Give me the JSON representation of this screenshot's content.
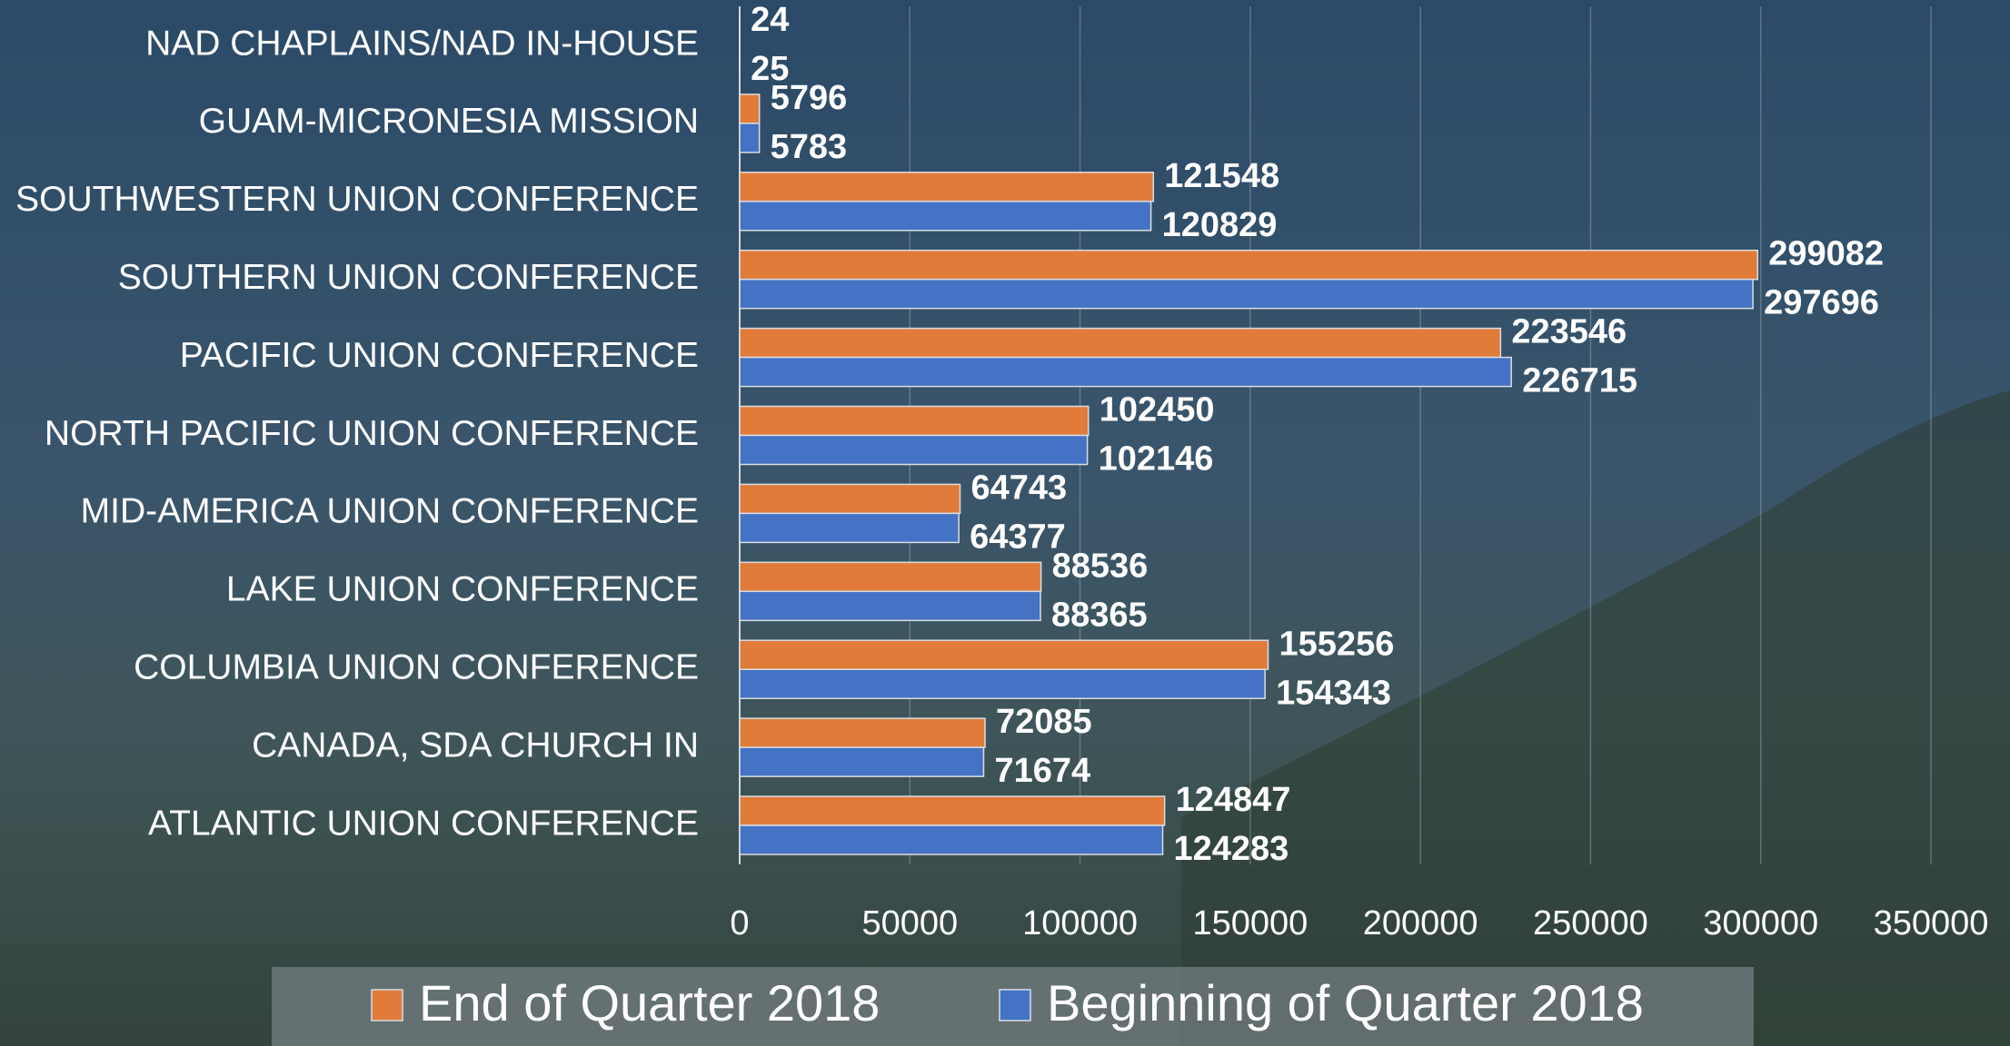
{
  "chart_data": {
    "type": "bar",
    "orientation": "horizontal",
    "categories": [
      "NAD CHAPLAINS/NAD IN-HOUSE",
      "GUAM-MICRONESIA MISSION",
      "SOUTHWESTERN UNION CONFERENCE",
      "SOUTHERN UNION CONFERENCE",
      "PACIFIC UNION CONFERENCE",
      "NORTH PACIFIC UNION CONFERENCE",
      "MID-AMERICA UNION CONFERENCE",
      "LAKE UNION CONFERENCE",
      "COLUMBIA UNION CONFERENCE",
      "CANADA, SDA CHURCH IN",
      "ATLANTIC UNION CONFERENCE"
    ],
    "series": [
      {
        "name": "End of Quarter 2018",
        "color": "#e07b39",
        "values": [
          24,
          5796,
          121548,
          299082,
          223546,
          102450,
          64743,
          88536,
          155256,
          72085,
          124847
        ]
      },
      {
        "name": "Beginning of Quarter 2018",
        "color": "#4472c4",
        "values": [
          25,
          5783,
          120829,
          297696,
          226715,
          102146,
          64377,
          88365,
          154343,
          71674,
          124283
        ]
      }
    ],
    "xlim": [
      0,
      350000
    ],
    "xticks": [
      0,
      50000,
      100000,
      150000,
      200000,
      250000,
      300000,
      350000
    ],
    "grid": true,
    "legend": "bottom"
  }
}
